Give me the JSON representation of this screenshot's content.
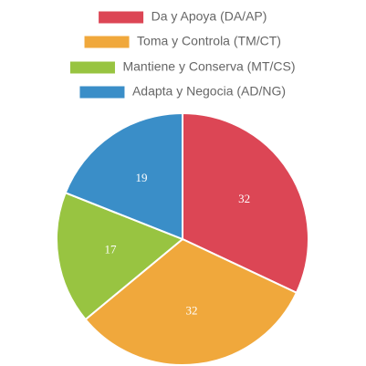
{
  "chart_data": {
    "type": "pie",
    "legend": "top",
    "categories": [
      "Da y Apoya (DA/AP)",
      "Toma y Controla (TM/CT)",
      "Mantiene y Conserva (MT/CS)",
      "Adapta y Negocia (AD/NG)"
    ],
    "values": [
      32,
      32,
      17,
      19
    ],
    "colors": [
      "#dc4655",
      "#f0a83c",
      "#98c441",
      "#3a8ec8"
    ]
  }
}
